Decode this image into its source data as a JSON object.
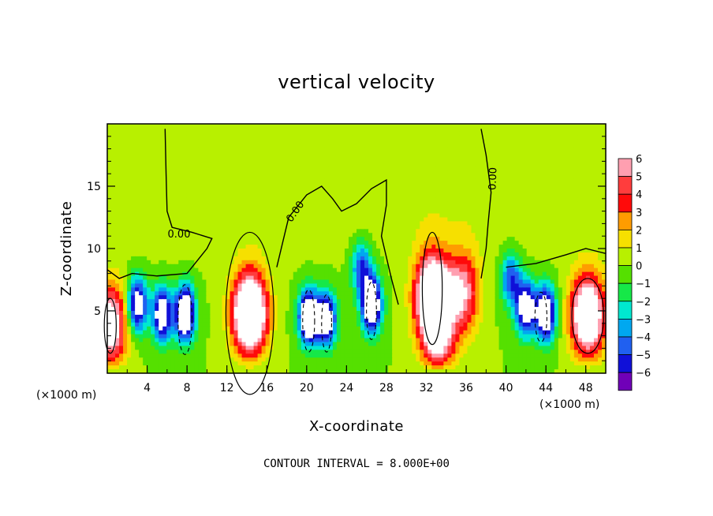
{
  "chart_data": {
    "type": "heatmap",
    "title": "vertical velocity",
    "xlabel": "X-coordinate",
    "ylabel": "Z-coordinate",
    "x_unit": "(×1000 m)",
    "z_unit": "(×1000 m)",
    "xlim": [
      0,
      50
    ],
    "ylim": [
      0,
      20
    ],
    "x_ticks": [
      4,
      8,
      12,
      16,
      20,
      24,
      28,
      32,
      36,
      40,
      44,
      48
    ],
    "y_ticks": [
      5,
      10,
      15
    ],
    "colorbar": {
      "levels": [
        6,
        5,
        4,
        3,
        2,
        1,
        0,
        -1,
        -2,
        -3,
        -4,
        -5,
        -6
      ],
      "colors": [
        "#ff9fb0",
        "#ff3d3d",
        "#ff0a0a",
        "#ff9c00",
        "#f6e000",
        "#b8f000",
        "#55e000",
        "#16e848",
        "#00e8d0",
        "#00a8f0",
        "#2060f0",
        "#1010d8",
        "#7000b8"
      ],
      "min": -6,
      "max": 6
    },
    "contour_label": "0.00",
    "contour_interval_text": "CONTOUR INTERVAL = 8.000E+00",
    "updrafts": [
      {
        "x": 0.3,
        "z": 3.8,
        "w": 8
      },
      {
        "x": 14.3,
        "z": 4.8,
        "w": 12
      },
      {
        "x": 32.6,
        "z": 6.3,
        "w": 11
      },
      {
        "x": 33.2,
        "z": 2.6,
        "w": 6
      },
      {
        "x": 35.6,
        "z": 6.5,
        "w": 6
      },
      {
        "x": 48.2,
        "z": 4.6,
        "w": 10
      }
    ],
    "downdrafts": [
      {
        "x": 3.0,
        "z": 5.5,
        "w": -8
      },
      {
        "x": 5.5,
        "z": 4.7,
        "w": -8
      },
      {
        "x": 7.8,
        "z": 4.8,
        "w": -10
      },
      {
        "x": 20.2,
        "z": 4.5,
        "w": -10
      },
      {
        "x": 22.0,
        "z": 4.3,
        "w": -8
      },
      {
        "x": 26.5,
        "z": 5.5,
        "w": -10
      },
      {
        "x": 42.0,
        "z": 5.2,
        "w": -8
      },
      {
        "x": 44.0,
        "z": 4.8,
        "w": -9
      },
      {
        "x": 25.5,
        "z": 8.5,
        "w": -5
      },
      {
        "x": 40.5,
        "z": 7.5,
        "w": -5
      }
    ]
  }
}
